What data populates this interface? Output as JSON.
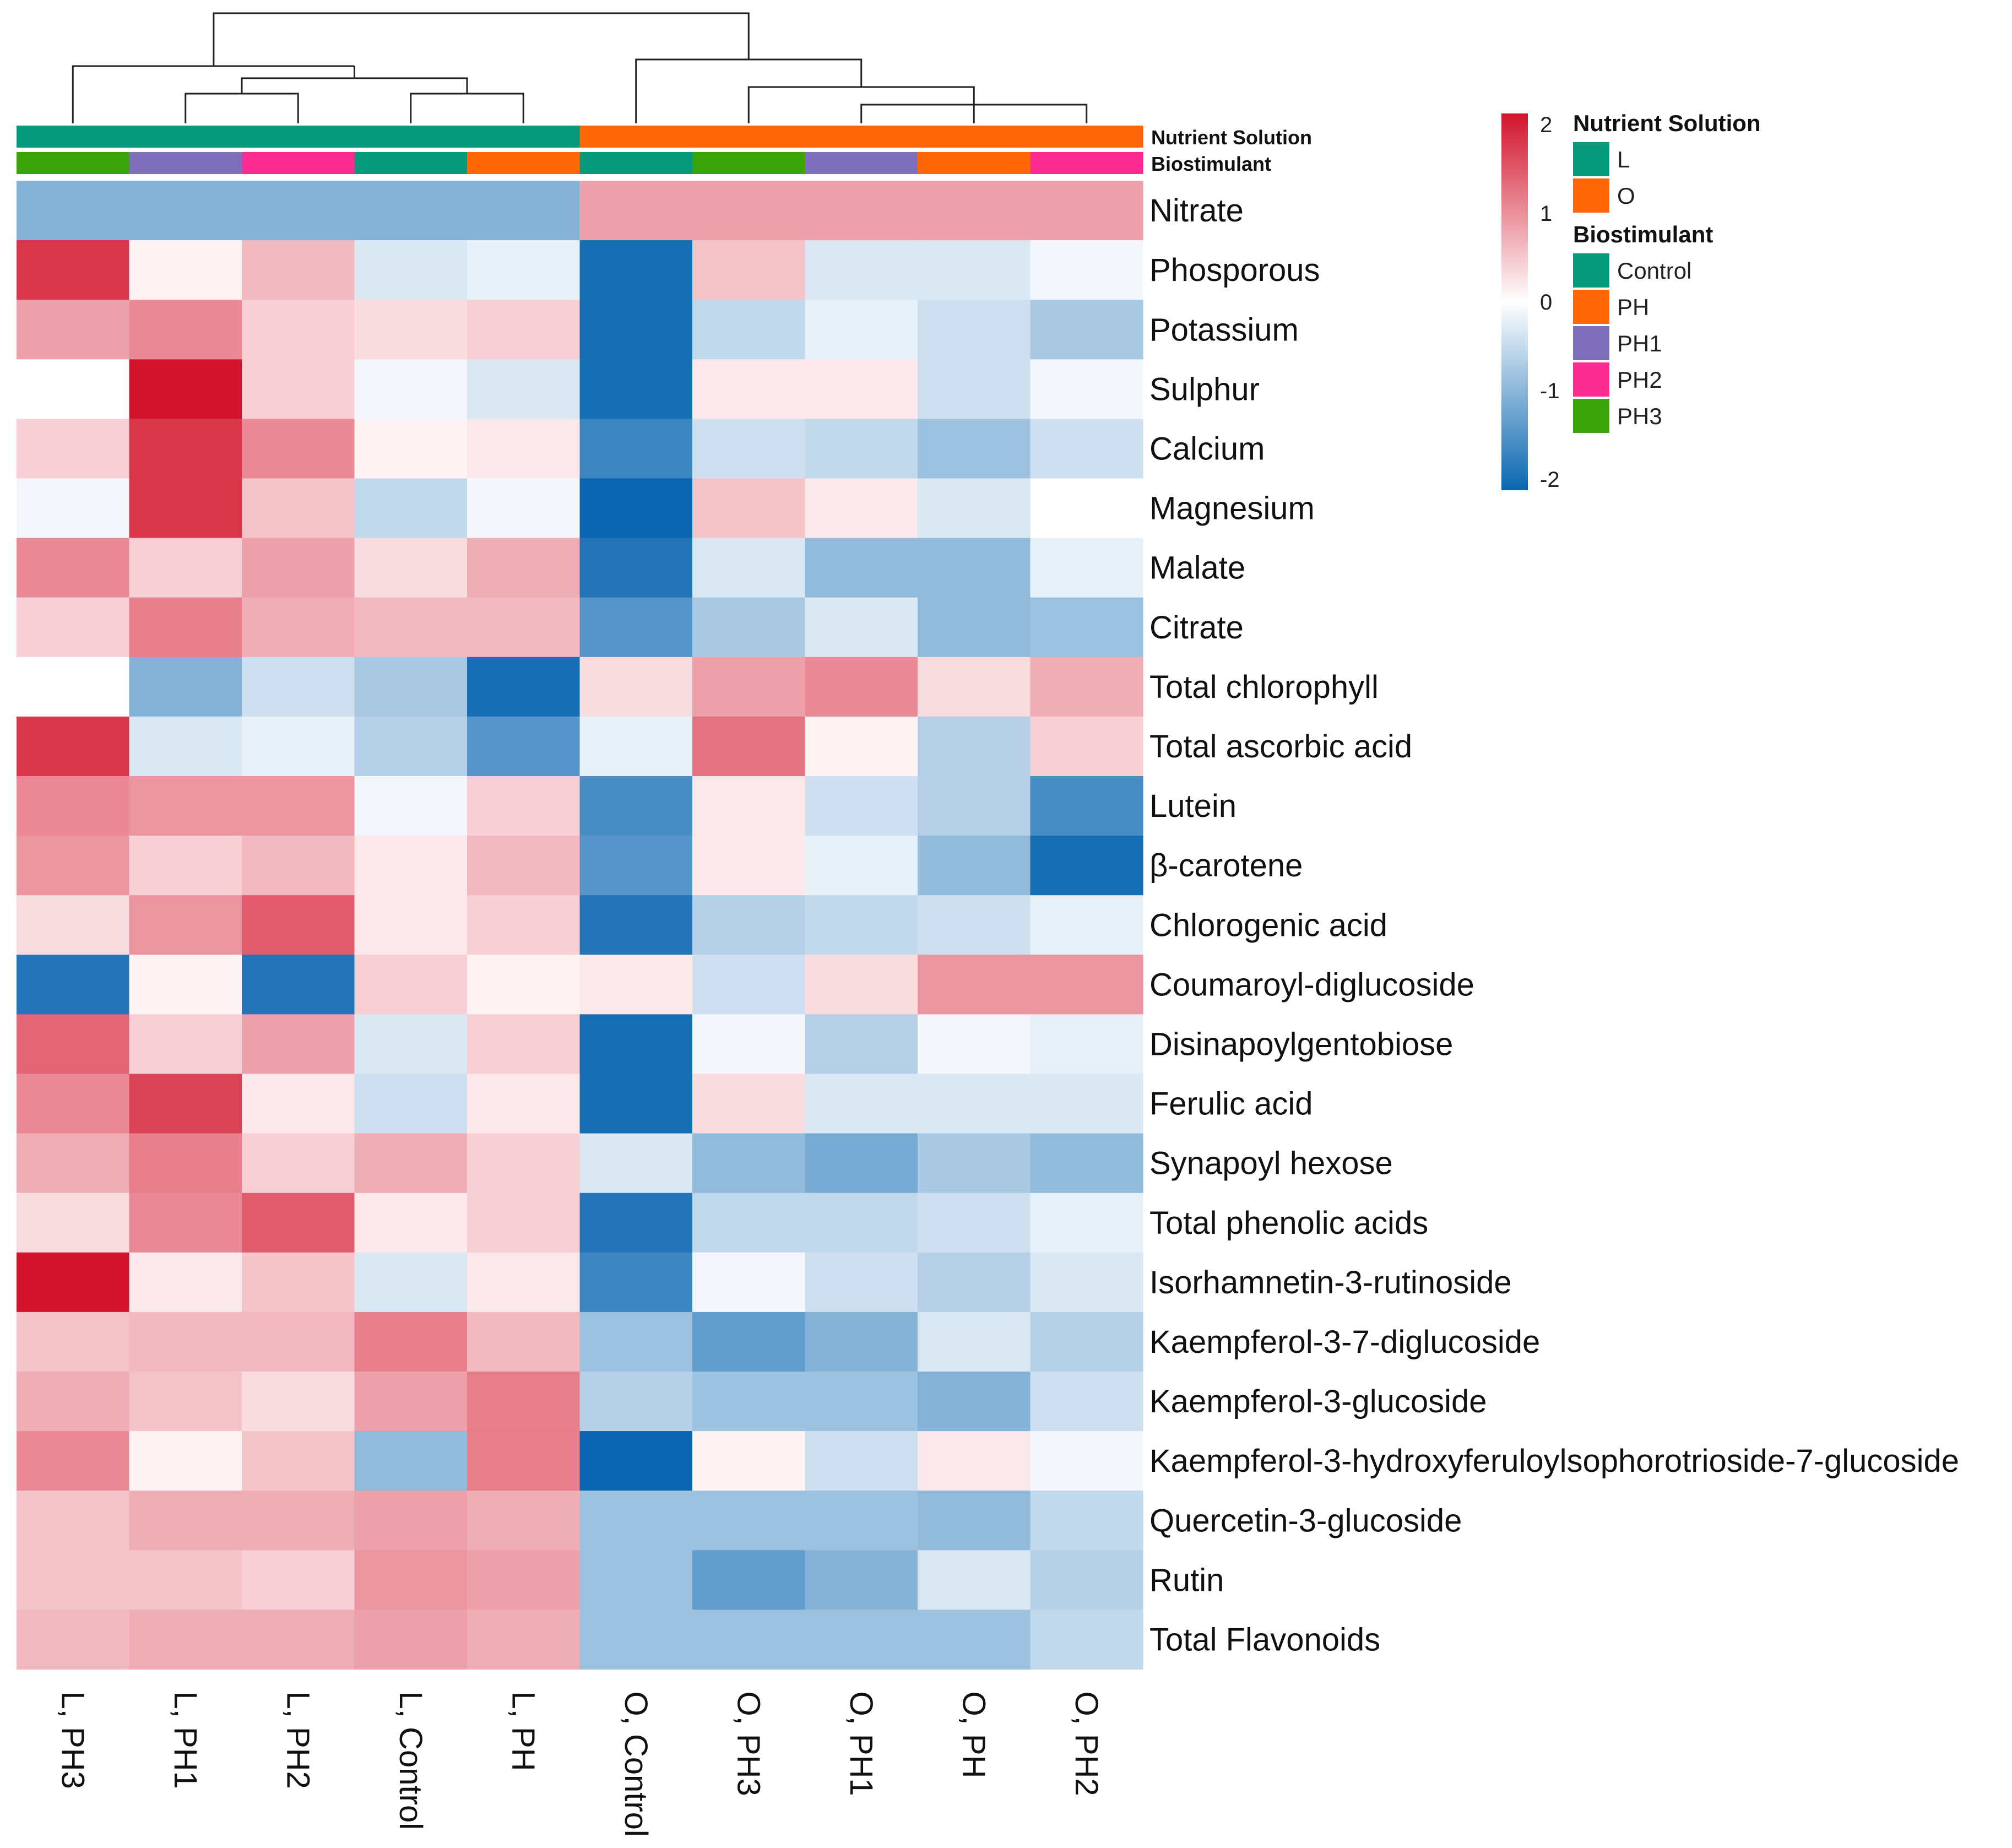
{
  "chart_data": {
    "type": "heatmap",
    "title": "",
    "columns": [
      "L, PH3",
      "L, PH1",
      "L, PH2",
      "L, Control",
      "L, PH",
      "O, Control",
      "O, PH3",
      "O, PH1",
      "O, PH",
      "O, PH2"
    ],
    "rows": [
      "Nitrate",
      "Phosporous",
      "Potassium",
      "Sulphur",
      "Calcium",
      "Magnesium",
      "Malate",
      "Citrate",
      "Total chlorophyll",
      "Total ascorbic acid",
      "Lutein",
      "β-carotene",
      "Chlorogenic acid",
      "Coumaroyl-diglucoside",
      "Disinapoylgentobiose",
      "Ferulic acid",
      "Synapoyl hexose",
      "Total phenolic acids",
      "Isorhamnetin-3-rutinoside",
      "Kaempferol-3-7-diglucoside",
      "Kaempferol-3-glucoside",
      "Kaempferol-3-hydroxyferuloylsophorotrioside-7-glucoside",
      "Quercetin-3-glucoside",
      "Rutin",
      "Total Flavonoids"
    ],
    "values": [
      [
        -1.0,
        -1.0,
        -1.0,
        -1.0,
        -1.0,
        0.8,
        0.8,
        0.8,
        0.8,
        0.8
      ],
      [
        1.7,
        0.1,
        0.6,
        -0.3,
        -0.2,
        -1.9,
        0.5,
        -0.3,
        -0.3,
        -0.1
      ],
      [
        0.8,
        1.0,
        0.4,
        0.3,
        0.4,
        -1.9,
        -0.5,
        -0.2,
        -0.4,
        -0.7
      ],
      [
        0.0,
        2.0,
        0.4,
        -0.1,
        -0.3,
        -1.9,
        0.2,
        0.2,
        -0.4,
        -0.1
      ],
      [
        0.4,
        1.7,
        1.0,
        0.1,
        0.2,
        -1.6,
        -0.4,
        -0.5,
        -0.8,
        -0.4
      ],
      [
        -0.1,
        1.7,
        0.5,
        -0.5,
        -0.1,
        -2.0,
        0.5,
        0.2,
        -0.3,
        0.0
      ],
      [
        1.0,
        0.4,
        0.8,
        0.3,
        0.7,
        -1.8,
        -0.3,
        -0.9,
        -0.9,
        -0.2
      ],
      [
        0.4,
        1.1,
        0.7,
        0.6,
        0.6,
        -1.4,
        -0.7,
        -0.3,
        -0.9,
        -0.8
      ],
      [
        0.0,
        -1.0,
        -0.4,
        -0.7,
        -1.9,
        0.3,
        0.8,
        1.0,
        0.3,
        0.7
      ],
      [
        1.7,
        -0.3,
        -0.2,
        -0.6,
        -1.4,
        -0.2,
        1.2,
        0.1,
        -0.6,
        0.4
      ],
      [
        1.0,
        0.9,
        0.9,
        -0.1,
        0.4,
        -1.5,
        0.2,
        -0.4,
        -0.6,
        -1.5
      ],
      [
        0.9,
        0.4,
        0.6,
        0.2,
        0.6,
        -1.4,
        0.2,
        -0.2,
        -0.9,
        -1.9
      ],
      [
        0.3,
        0.9,
        1.4,
        0.2,
        0.4,
        -1.8,
        -0.6,
        -0.5,
        -0.4,
        -0.2
      ],
      [
        -1.8,
        0.1,
        -1.8,
        0.4,
        0.1,
        0.2,
        -0.4,
        0.3,
        0.9,
        0.9
      ],
      [
        1.3,
        0.4,
        0.8,
        -0.3,
        0.4,
        -1.9,
        -0.1,
        -0.6,
        -0.1,
        -0.2
      ],
      [
        1.0,
        1.6,
        0.2,
        -0.4,
        0.2,
        -1.9,
        0.3,
        -0.3,
        -0.3,
        -0.3
      ],
      [
        0.7,
        1.1,
        0.4,
        0.7,
        0.4,
        -0.3,
        -0.9,
        -1.1,
        -0.7,
        -0.9
      ],
      [
        0.3,
        1.0,
        1.4,
        0.2,
        0.4,
        -1.8,
        -0.5,
        -0.5,
        -0.4,
        -0.2
      ],
      [
        2.0,
        0.2,
        0.5,
        -0.3,
        0.2,
        -1.6,
        -0.1,
        -0.4,
        -0.6,
        -0.3
      ],
      [
        0.5,
        0.6,
        0.6,
        1.1,
        0.6,
        -0.8,
        -1.3,
        -1.0,
        -0.3,
        -0.6
      ],
      [
        0.7,
        0.5,
        0.3,
        0.8,
        1.1,
        -0.6,
        -0.8,
        -0.8,
        -1.0,
        -0.4
      ],
      [
        1.0,
        0.1,
        0.5,
        -0.9,
        1.1,
        -2.0,
        0.1,
        -0.4,
        0.2,
        -0.1
      ],
      [
        0.5,
        0.7,
        0.7,
        0.8,
        0.7,
        -0.8,
        -0.8,
        -0.8,
        -0.9,
        -0.5
      ],
      [
        0.5,
        0.5,
        0.4,
        0.9,
        0.8,
        -0.8,
        -1.3,
        -1.0,
        -0.3,
        -0.6
      ],
      [
        0.6,
        0.7,
        0.7,
        0.8,
        0.7,
        -0.8,
        -0.8,
        -0.8,
        -0.8,
        -0.5
      ]
    ],
    "annotations": {
      "nutrient_label": "Nutrient Solution",
      "biostimulant_label": "Biostimulant",
      "nutrient_by_column": [
        "L",
        "L",
        "L",
        "L",
        "L",
        "O",
        "O",
        "O",
        "O",
        "O"
      ],
      "biostimulant_by_column": [
        "PH3",
        "PH1",
        "PH2",
        "Control",
        "PH",
        "Control",
        "PH3",
        "PH1",
        "PH",
        "PH2"
      ]
    },
    "color_scale": {
      "min": -2,
      "max": 2,
      "ticks": [
        "2",
        "1",
        "0",
        "-1",
        "-2"
      ],
      "low_color": "#0a66b0",
      "mid_color": "#ffffff",
      "high_color": "#d2142c"
    },
    "legend": {
      "nutrient_title": "Nutrient Solution",
      "nutrient_items": [
        {
          "label": "L",
          "color": "#06997a"
        },
        {
          "label": "O",
          "color": "#fe6608"
        }
      ],
      "biostimulant_title": "Biostimulant",
      "biostimulant_items": [
        {
          "label": "Control",
          "color": "#06997a"
        },
        {
          "label": "PH",
          "color": "#fe6608"
        },
        {
          "label": "PH1",
          "color": "#7d6fb9"
        },
        {
          "label": "PH2",
          "color": "#fb2b92"
        },
        {
          "label": "PH3",
          "color": "#3ba40b"
        }
      ]
    },
    "dendrogram": "column clustering tree"
  }
}
